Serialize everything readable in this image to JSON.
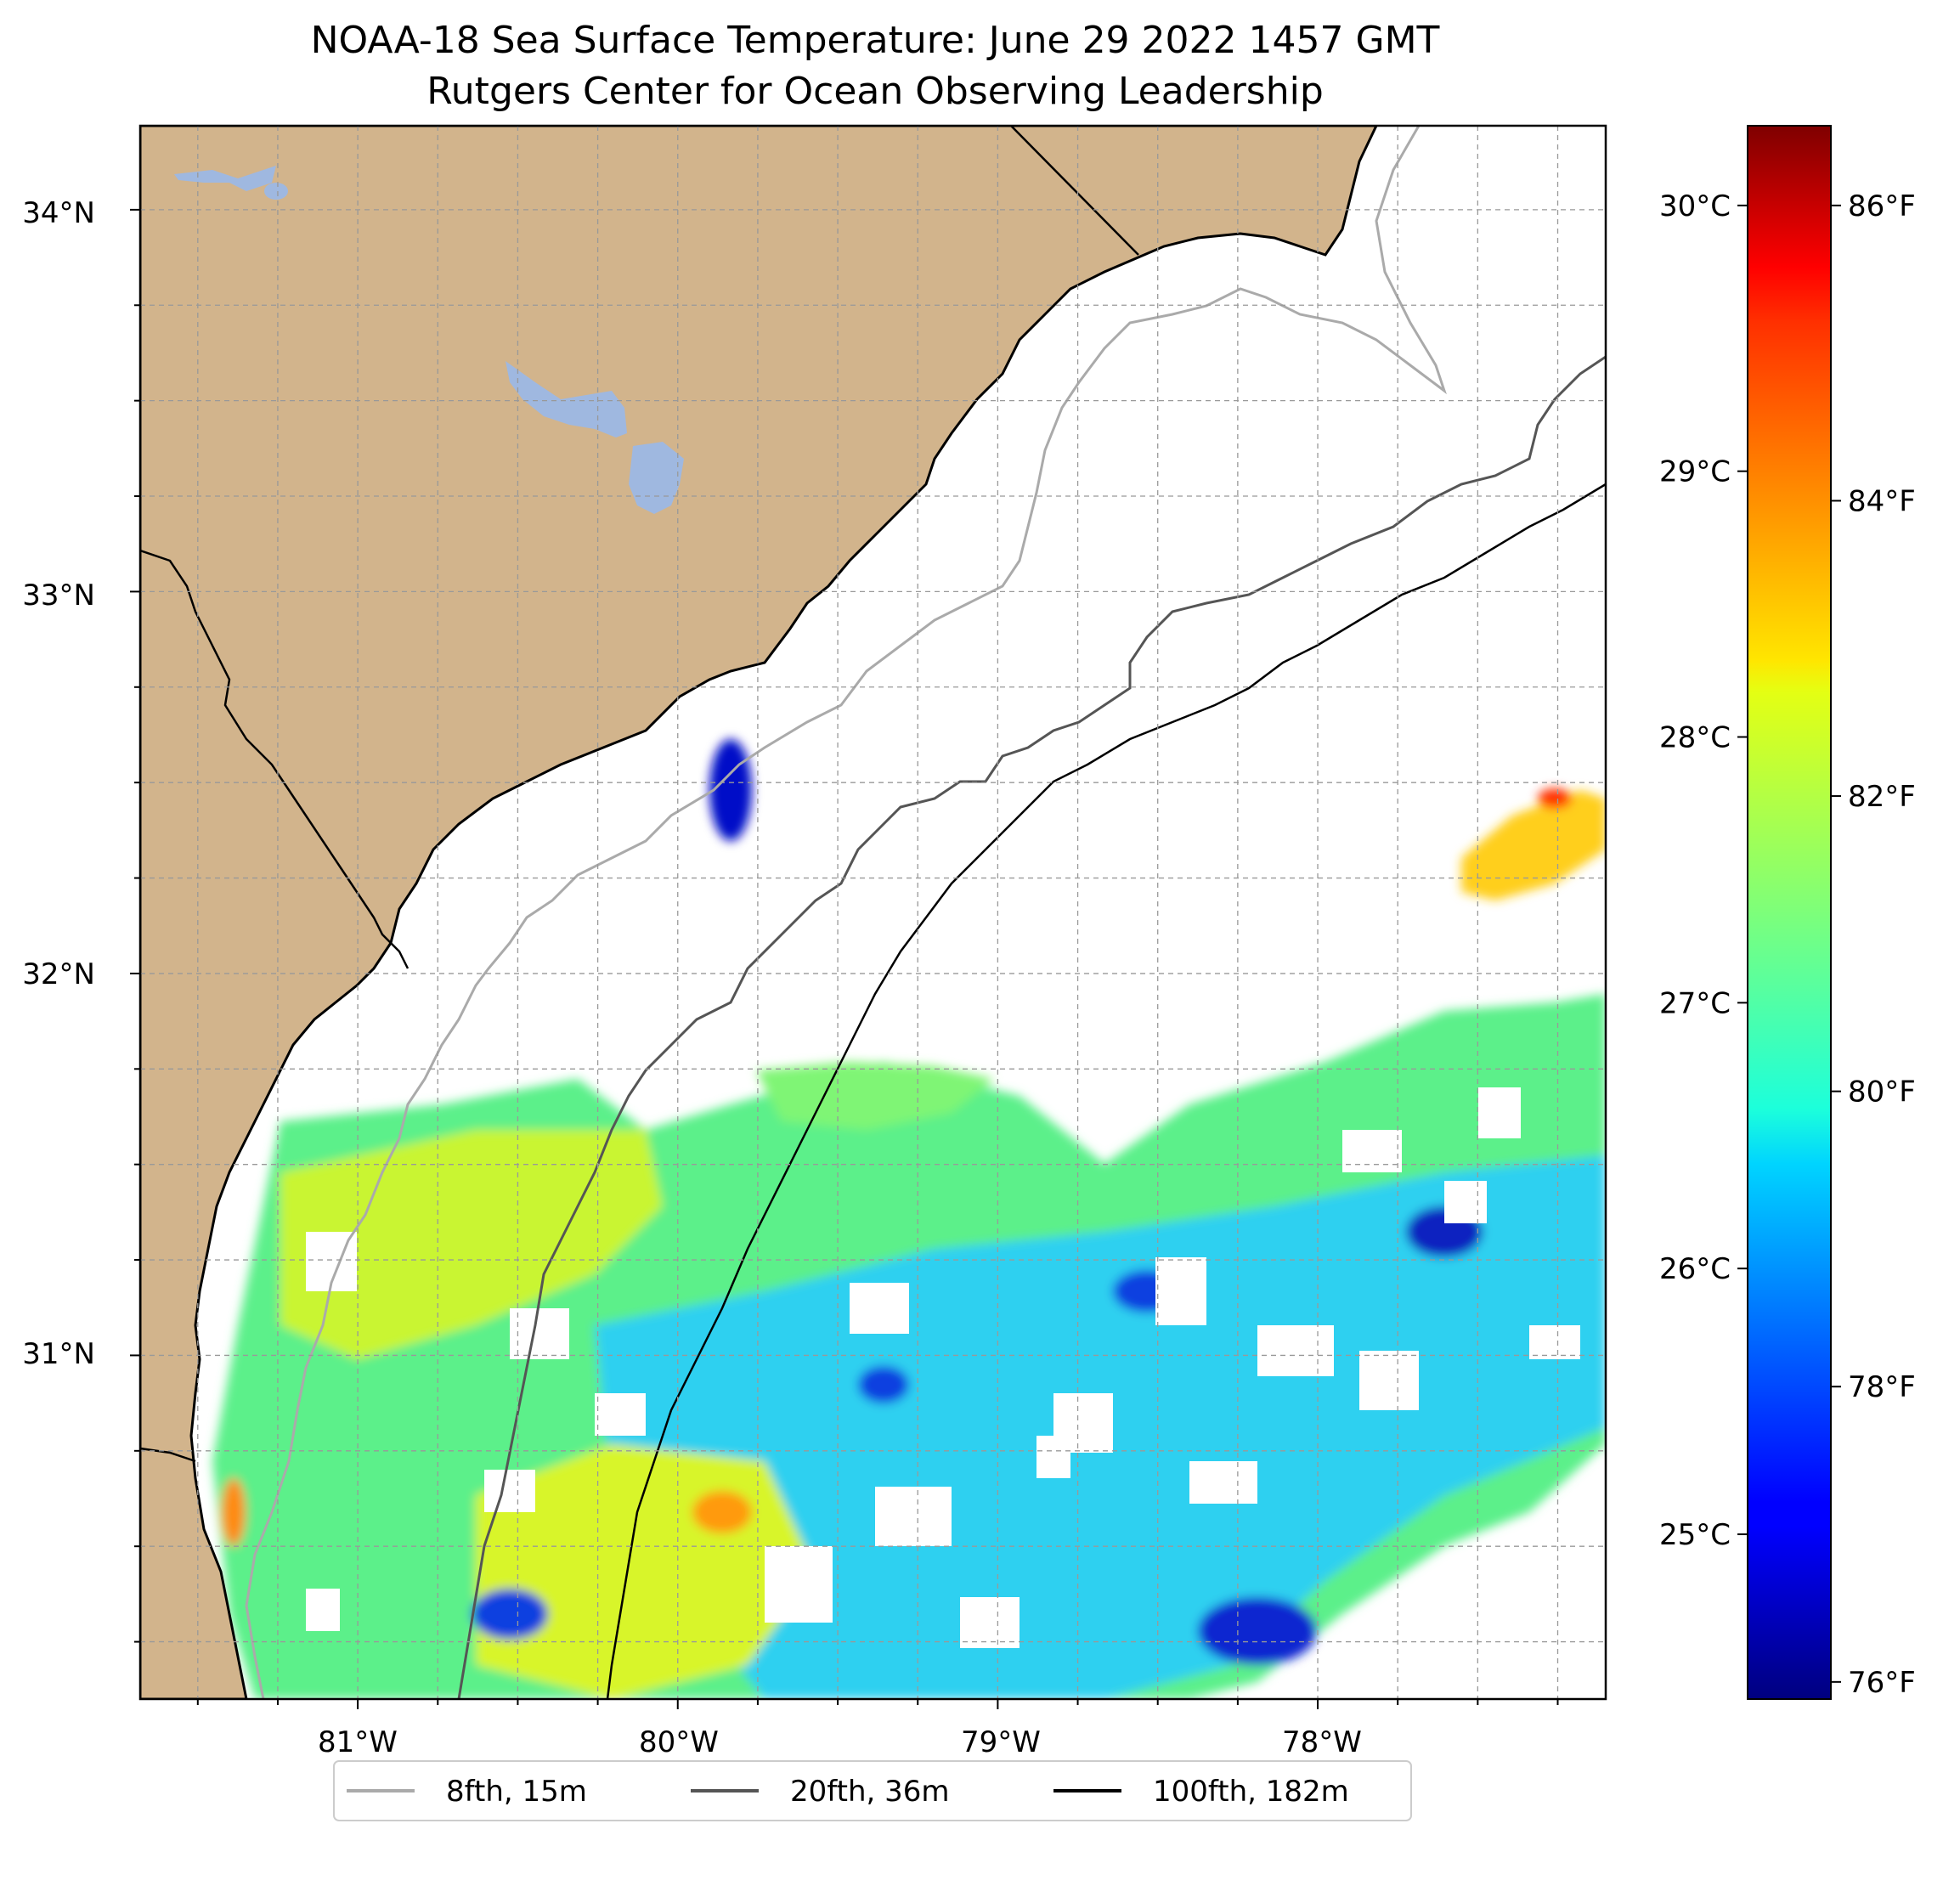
{
  "title": {
    "line1": "NOAA-18 Sea Surface Temperature: June 29 2022 1457 GMT",
    "line2": "Rutgers Center for Ocean Observing Leadership"
  },
  "map": {
    "lon_range": [
      -81.68,
      -77.1
    ],
    "lat_range": [
      30.1,
      34.22
    ],
    "lat_ticks": [
      {
        "value": 34,
        "label": "34°N"
      },
      {
        "value": 33,
        "label": "33°N"
      },
      {
        "value": 32,
        "label": "32°N"
      },
      {
        "value": 31,
        "label": "31°N"
      }
    ],
    "lon_ticks": [
      {
        "value": -81,
        "label": "81°W"
      },
      {
        "value": -80,
        "label": "80°W"
      },
      {
        "value": -79,
        "label": "79°W"
      },
      {
        "value": -78,
        "label": "78°W"
      }
    ],
    "gridlines": true,
    "grid_step_deg": 0.25,
    "land_color": "#d2b48c",
    "lake_color": "#9fb8e0",
    "no_data_color": "#ffffff"
  },
  "colorbar": {
    "colormap": "jet",
    "range_c": [
      24.38,
      30.3
    ],
    "celsius_ticks": [
      {
        "value": 30,
        "label": "30°C"
      },
      {
        "value": 29,
        "label": "29°C"
      },
      {
        "value": 28,
        "label": "28°C"
      },
      {
        "value": 27,
        "label": "27°C"
      },
      {
        "value": 26,
        "label": "26°C"
      },
      {
        "value": 25,
        "label": "25°C"
      }
    ],
    "fahrenheit_ticks": [
      {
        "value": 86,
        "label": "86°F"
      },
      {
        "value": 84,
        "label": "84°F"
      },
      {
        "value": 82,
        "label": "82°F"
      },
      {
        "value": 80,
        "label": "80°F"
      },
      {
        "value": 78,
        "label": "78°F"
      },
      {
        "value": 76,
        "label": "76°F"
      }
    ]
  },
  "legend": {
    "placement": "bottom-center",
    "items": [
      {
        "label": "8fth, 15m",
        "color": "#aaaaaa"
      },
      {
        "label": "20fth, 36m",
        "color": "#555555"
      },
      {
        "label": "100fth, 182m",
        "color": "#000000"
      }
    ]
  }
}
